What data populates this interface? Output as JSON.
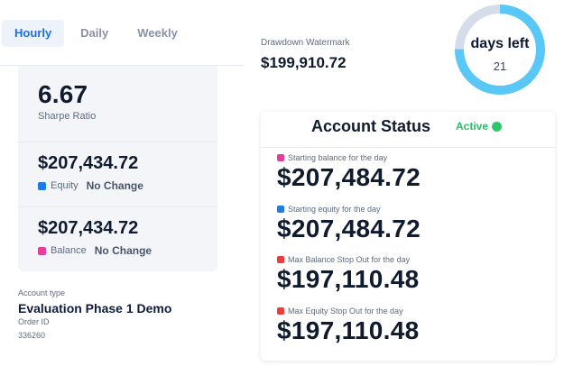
{
  "tabs": [
    {
      "label": "Hourly",
      "active": true
    },
    {
      "label": "Daily",
      "active": false
    },
    {
      "label": "Weekly",
      "active": false
    }
  ],
  "stats": {
    "sharpe": {
      "value": "6.67",
      "label": "Sharpe Ratio"
    },
    "equity": {
      "value": "$207,434.72",
      "label": "Equity",
      "change": "No Change",
      "color": "#1d7ce8"
    },
    "balance": {
      "value": "$207,434.72",
      "label": "Balance",
      "change": "No Change",
      "color": "#e53e9a"
    }
  },
  "account": {
    "type_label": "Account type",
    "type_value": "Evaluation Phase 1 Demo",
    "order_label": "Order ID",
    "order_value": "336260"
  },
  "drawdown": {
    "label": "Drawdown Watermark",
    "value": "$199,910.72"
  },
  "days_left": {
    "title": "days left",
    "value": "21",
    "remaining_fraction": 0.75,
    "ring_color": "#5ac8f7",
    "track_color": "#d5dcea"
  },
  "status": {
    "title": "Account Status",
    "state": "Active",
    "state_color": "#2bbf68",
    "rows": [
      {
        "label": "Starting balance for the day",
        "value": "$207,484.72",
        "color": "#e53e9a"
      },
      {
        "label": "Starting equity for the day",
        "value": "$207,484.72",
        "color": "#1d7ce8"
      },
      {
        "label": "Max Balance Stop Out for the day",
        "value": "$197,110.48",
        "color": "#ee3b3b"
      },
      {
        "label": "Max Equity Stop Out for the day",
        "value": "$197,110.48",
        "color": "#ee3b3b"
      }
    ]
  }
}
